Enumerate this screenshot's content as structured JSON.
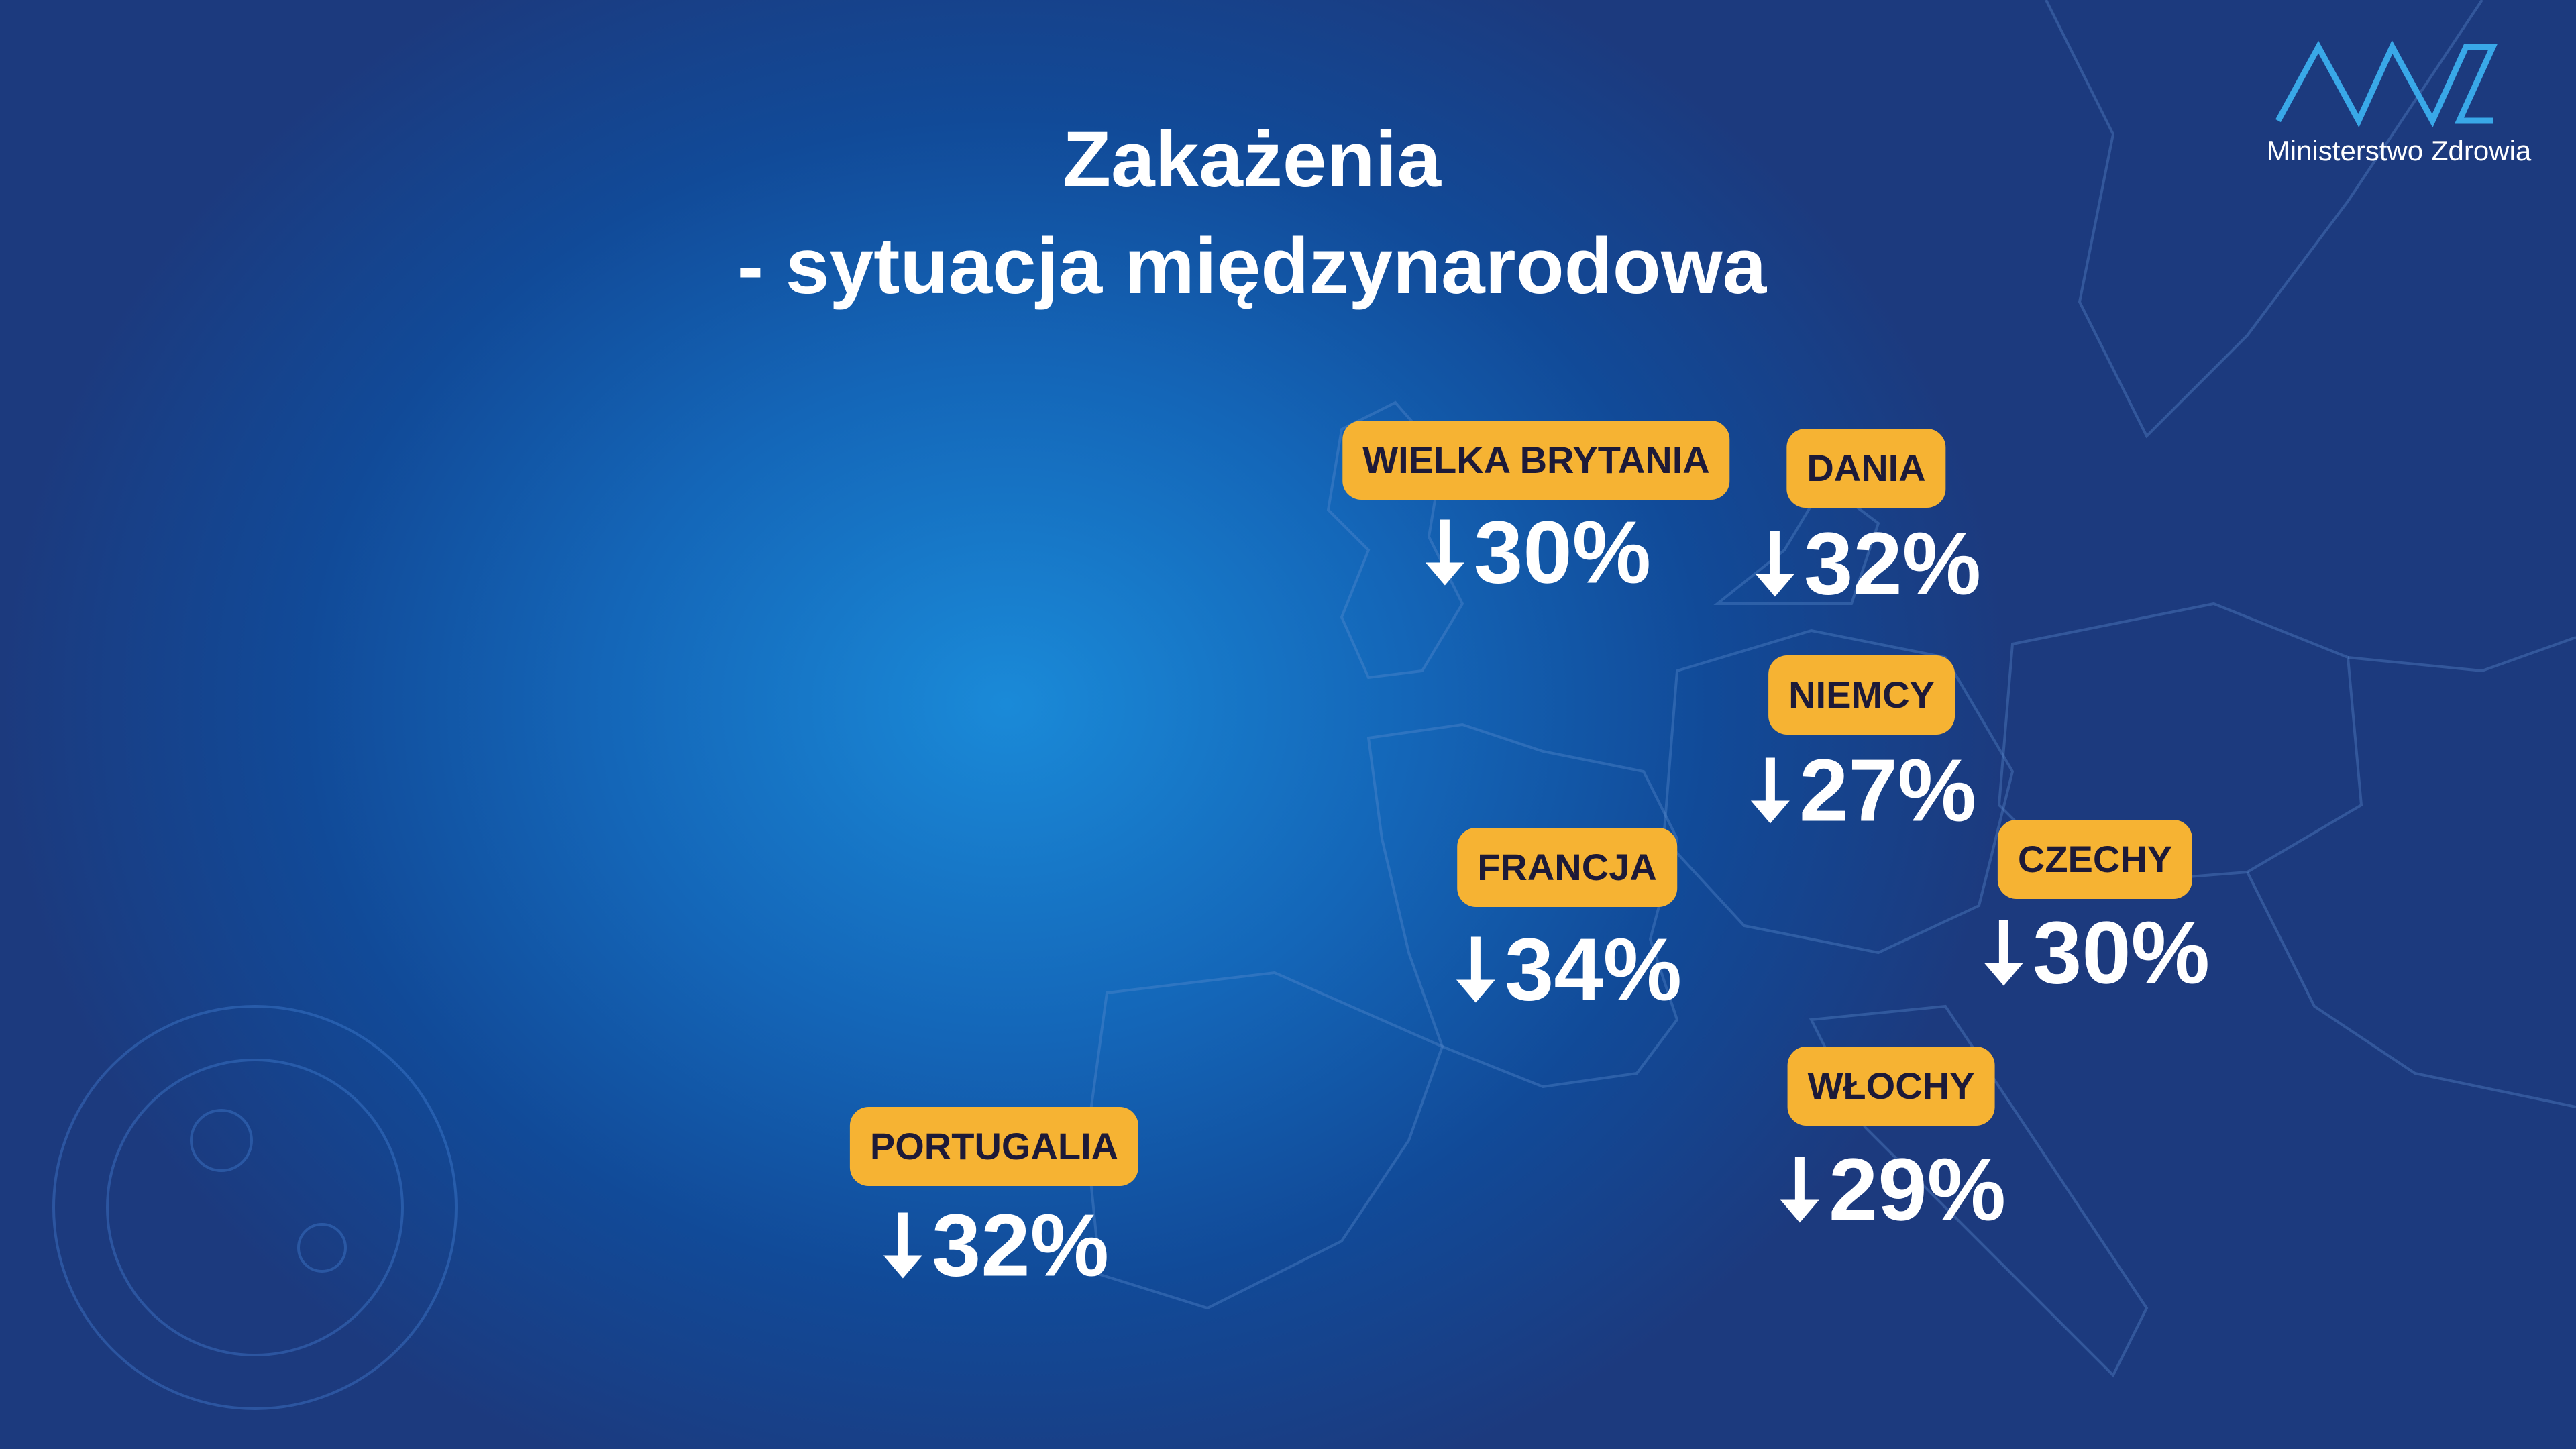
{
  "title": [
    "Zakażenia",
    "- sytuacja międzynarodowa"
  ],
  "logo": "Ministerstwo Zdrowia",
  "countries": [
    {
      "name": "WIELKA BRYTANIA",
      "change": "30%"
    },
    {
      "name": "DANIA",
      "change": "32%"
    },
    {
      "name": "NIEMCY",
      "change": "27%"
    },
    {
      "name": "FRANCJA",
      "change": "34%"
    },
    {
      "name": "CZECHY",
      "change": "30%"
    },
    {
      "name": "WŁOCHY",
      "change": "29%"
    },
    {
      "name": "PORTUGALIA",
      "change": "32%"
    }
  ]
}
